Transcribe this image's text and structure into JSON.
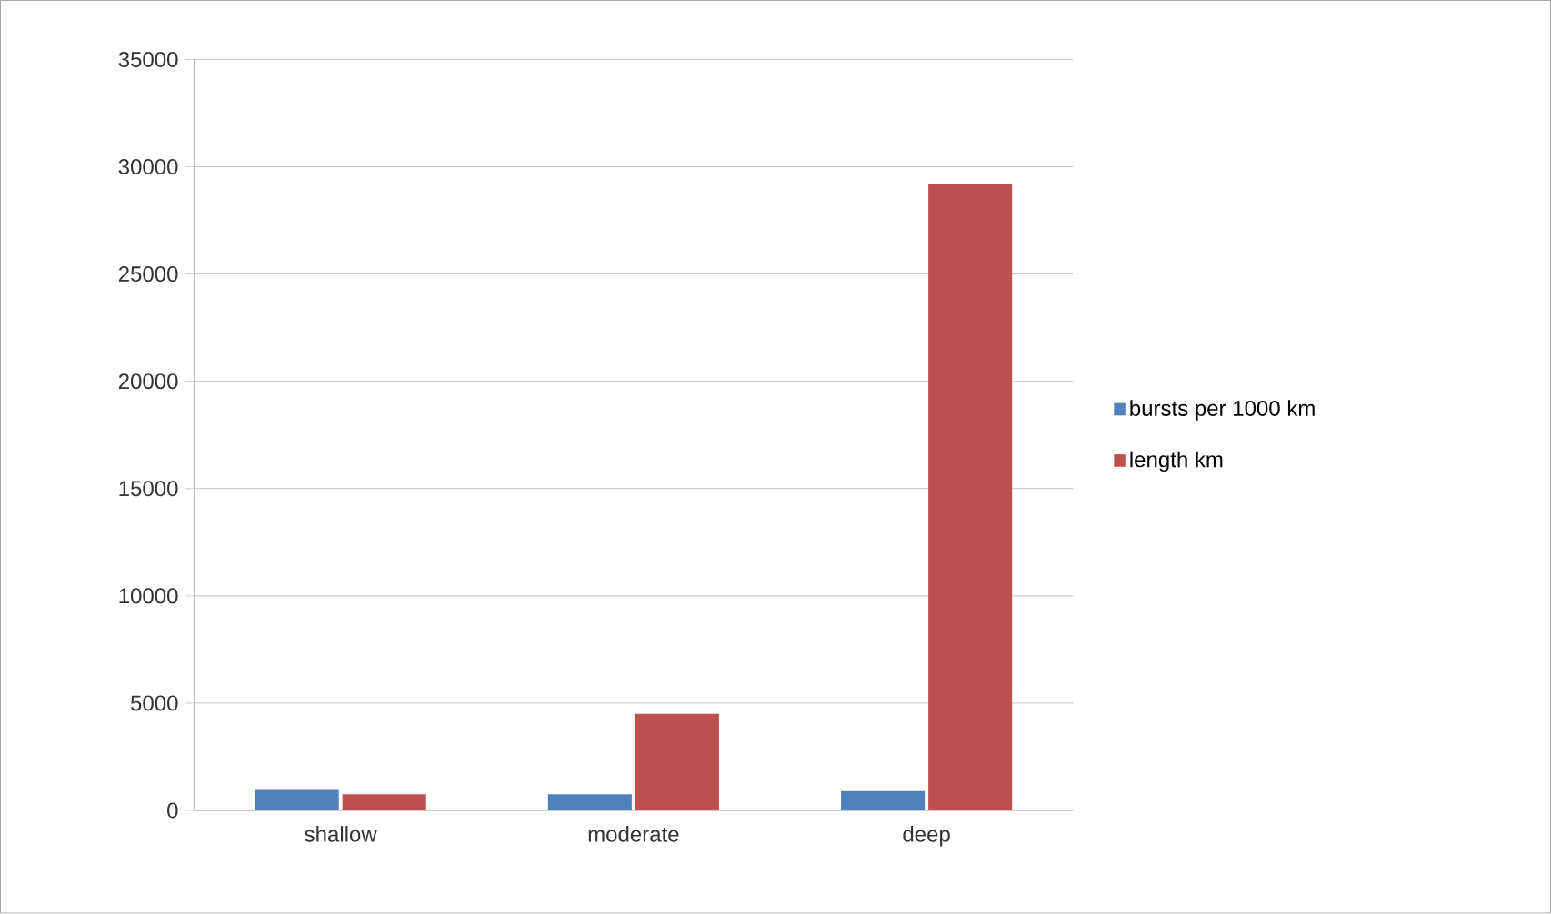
{
  "chart_data": {
    "type": "bar",
    "categories": [
      "shallow",
      "moderate",
      "deep"
    ],
    "series": [
      {
        "name": "bursts per 1000 km",
        "color": "#4f81bd",
        "values": [
          1000,
          750,
          900
        ]
      },
      {
        "name": "length km",
        "color": "#c0504d",
        "values": [
          750,
          4500,
          29200
        ]
      }
    ],
    "ylim": [
      0,
      35000
    ],
    "yticks": [
      0,
      5000,
      10000,
      15000,
      20000,
      25000,
      30000,
      35000
    ],
    "grid": "y",
    "legend": "right"
  }
}
